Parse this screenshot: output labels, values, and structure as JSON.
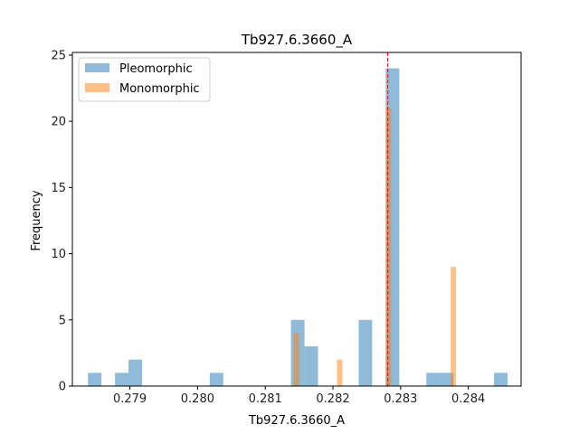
{
  "chart_data": {
    "type": "bar",
    "title": "Tb927.6.3660_A",
    "xlabel": "Tb927.6.3660_A",
    "ylabel": "Frequency",
    "xlim": [
      0.27815,
      0.28478
    ],
    "ylim": [
      0,
      25.2
    ],
    "xticks": [
      0.279,
      0.28,
      0.281,
      0.282,
      0.283,
      0.284
    ],
    "xtick_labels": [
      "0.279",
      "0.280",
      "0.281",
      "0.282",
      "0.283",
      "0.284"
    ],
    "yticks": [
      0,
      5,
      10,
      15,
      20,
      25
    ],
    "ytick_labels": [
      "0",
      "5",
      "10",
      "15",
      "20",
      "25"
    ],
    "legend_position": "top-left",
    "grid": false,
    "series": [
      {
        "name": "Pleomorphic",
        "color": "#1f77b4",
        "opacity": 0.5,
        "bin_width": 0.0002,
        "bins": [
          {
            "x0": 0.27838,
            "count": 1
          },
          {
            "x0": 0.27878,
            "count": 1
          },
          {
            "x0": 0.27898,
            "count": 2
          },
          {
            "x0": 0.28018,
            "count": 1
          },
          {
            "x0": 0.28138,
            "count": 5
          },
          {
            "x0": 0.28158,
            "count": 3
          },
          {
            "x0": 0.28238,
            "count": 5
          },
          {
            "x0": 0.28278,
            "count": 24
          },
          {
            "x0": 0.28338,
            "count": 1
          },
          {
            "x0": 0.28358,
            "count": 1
          },
          {
            "x0": 0.28438,
            "count": 1
          }
        ]
      },
      {
        "name": "Monomorphic",
        "color": "#ff7f0e",
        "opacity": 0.5,
        "bin_width": 8e-05,
        "bins": [
          {
            "x0": 0.28142,
            "count": 4
          },
          {
            "x0": 0.28206,
            "count": 2
          },
          {
            "x0": 0.28278,
            "count": 21
          },
          {
            "x0": 0.28374,
            "count": 9
          }
        ]
      }
    ],
    "reference_line": {
      "x": 0.28281,
      "color": "#d62728",
      "style": "dashed"
    }
  }
}
